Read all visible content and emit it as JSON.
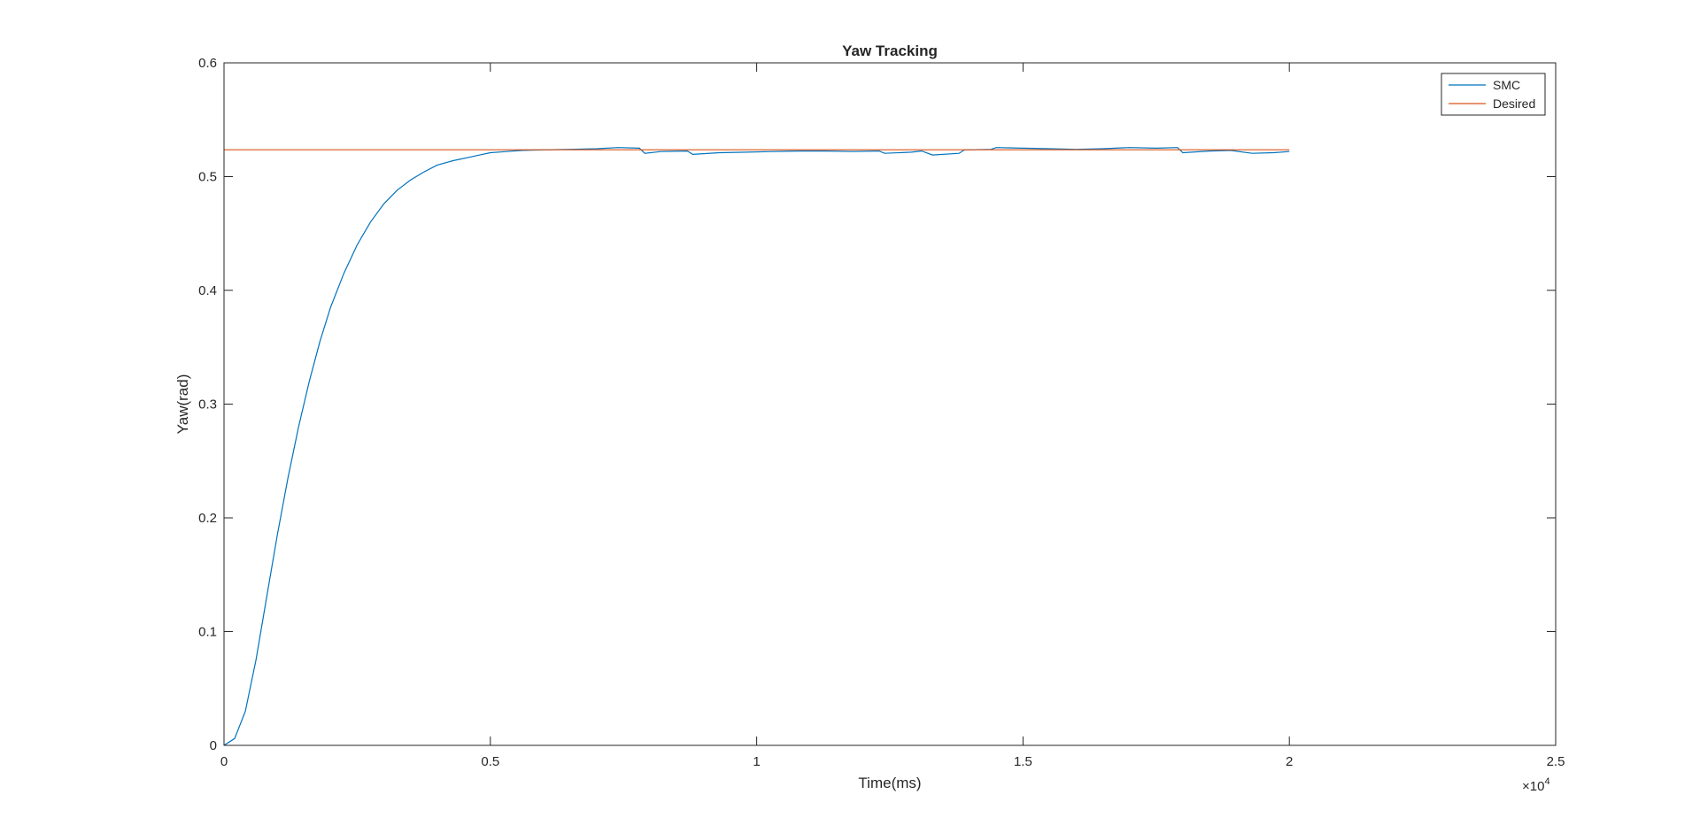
{
  "chart_data": {
    "type": "line",
    "title": "Yaw Tracking",
    "xlabel": "Time(ms)",
    "ylabel": "Yaw(rad)",
    "xlim": [
      0,
      25000
    ],
    "ylim": [
      0,
      0.6
    ],
    "x_ticks": [
      0,
      5000,
      10000,
      15000,
      20000,
      25000
    ],
    "x_tick_labels": [
      "0",
      "0.5",
      "1",
      "1.5",
      "2",
      "2.5"
    ],
    "x_exponent_label": "×10",
    "x_exponent_power": "4",
    "y_ticks": [
      0,
      0.1,
      0.2,
      0.3,
      0.4,
      0.5,
      0.6
    ],
    "y_tick_labels": [
      "0",
      "0.1",
      "0.2",
      "0.3",
      "0.4",
      "0.5",
      "0.6"
    ],
    "grid": false,
    "legend_position": "top-right",
    "series": [
      {
        "name": "SMC",
        "color": "#0072BD",
        "x": [
          0,
          200,
          400,
          600,
          800,
          1000,
          1200,
          1400,
          1600,
          1800,
          2000,
          2250,
          2500,
          2750,
          3000,
          3250,
          3500,
          3750,
          4000,
          4300,
          4600,
          4800,
          5000,
          5300,
          5600,
          6000,
          6500,
          7000,
          7400,
          7800,
          7900,
          8200,
          8700,
          8800,
          9300,
          9800,
          10300,
          10800,
          11300,
          11800,
          12300,
          12400,
          12900,
          13100,
          13300,
          13800,
          13900,
          14400,
          14500,
          15000,
          15500,
          16000,
          16500,
          17000,
          17500,
          17900,
          18000,
          18500,
          18900,
          19300,
          19700,
          20000
        ],
        "y": [
          0,
          0.006,
          0.03,
          0.075,
          0.13,
          0.185,
          0.235,
          0.28,
          0.32,
          0.355,
          0.385,
          0.415,
          0.44,
          0.46,
          0.476,
          0.488,
          0.497,
          0.504,
          0.51,
          0.514,
          0.517,
          0.519,
          0.521,
          0.522,
          0.523,
          0.5235,
          0.524,
          0.5245,
          0.5255,
          0.525,
          0.5205,
          0.522,
          0.5225,
          0.5195,
          0.521,
          0.5215,
          0.522,
          0.5225,
          0.5225,
          0.522,
          0.5225,
          0.5205,
          0.5215,
          0.5225,
          0.519,
          0.5205,
          0.5235,
          0.524,
          0.5255,
          0.525,
          0.5245,
          0.524,
          0.5245,
          0.5255,
          0.525,
          0.5255,
          0.521,
          0.5225,
          0.523,
          0.5205,
          0.521,
          0.522
        ]
      },
      {
        "name": "Desired",
        "color": "#D95319",
        "x": [
          0,
          20000
        ],
        "y": [
          0.5236,
          0.5236
        ]
      }
    ]
  }
}
